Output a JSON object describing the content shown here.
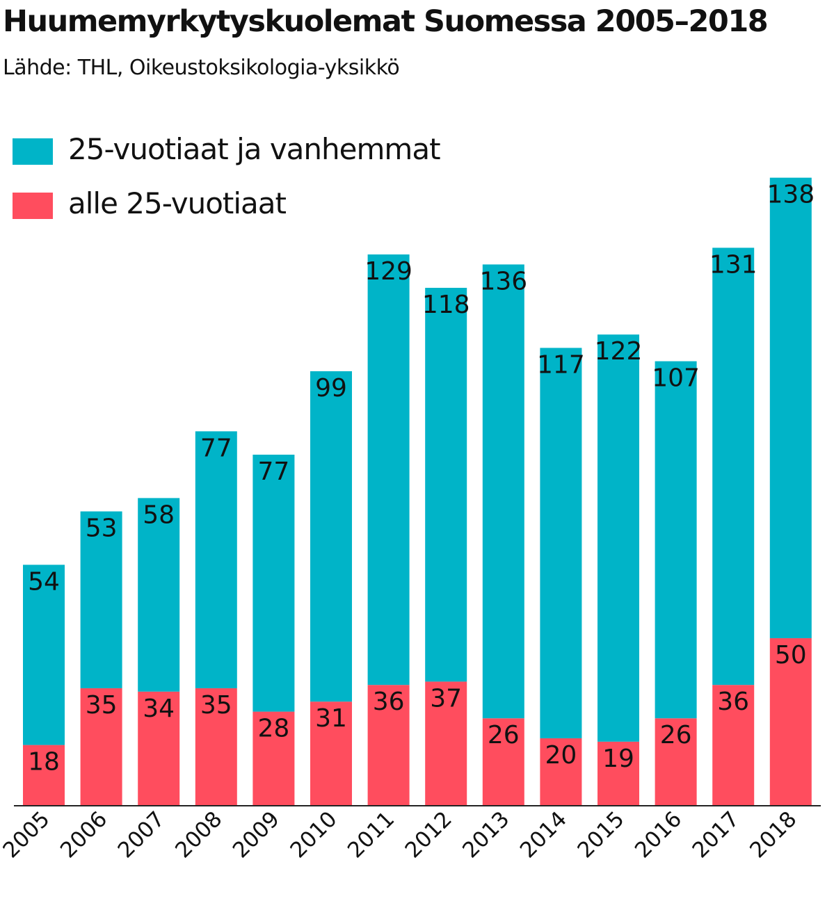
{
  "chart_data": {
    "type": "bar",
    "stacked": true,
    "title": "Huumemyrkytyskuolemat Suomessa 2005–2018",
    "subtitle": "Lähde: THL, Oikeustoksikologia-yksikkö",
    "categories": [
      "2005",
      "2006",
      "2007",
      "2008",
      "2009",
      "2010",
      "2011",
      "2012",
      "2013",
      "2014",
      "2015",
      "2016",
      "2017",
      "2018"
    ],
    "series": [
      {
        "name": "alle 25-vuotiaat",
        "color": "#ff4d5e",
        "values": [
          18,
          35,
          34,
          35,
          28,
          31,
          36,
          37,
          26,
          20,
          19,
          26,
          36,
          50
        ]
      },
      {
        "name": "25-vuotiaat ja vanhemmat",
        "color": "#00b4c8",
        "values": [
          54,
          53,
          58,
          77,
          77,
          99,
          129,
          118,
          136,
          117,
          122,
          107,
          131,
          138
        ]
      }
    ],
    "legend_placement": "top-left",
    "grid": false,
    "ylim": [
      0,
      190
    ]
  }
}
